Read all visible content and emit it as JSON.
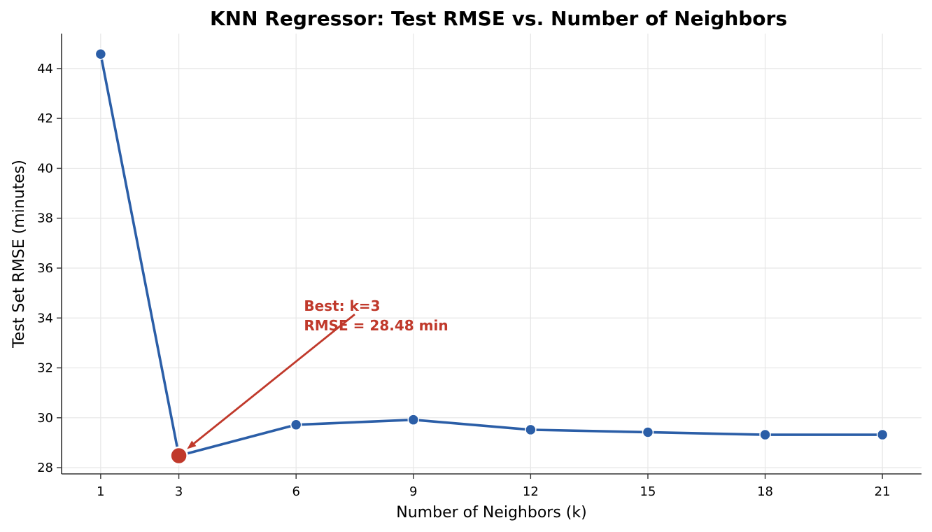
{
  "chart_data": {
    "type": "line",
    "title": "KNN Regressor: Test RMSE vs. Number of Neighbors",
    "xlabel": "Number of Neighbors (k)",
    "ylabel": "Test Set RMSE (minutes)",
    "x": [
      1,
      3,
      6,
      9,
      12,
      15,
      18,
      21
    ],
    "x_tick_labels": [
      "1",
      "3",
      "6",
      "9",
      "12",
      "15",
      "18",
      "21"
    ],
    "series": [
      {
        "values": [
          44.58,
          28.48,
          29.72,
          29.92,
          29.52,
          29.42,
          29.32,
          29.32
        ],
        "color": "#2b5ea7"
      }
    ],
    "xlim": [
      0.0,
      22.0
    ],
    "ylim": [
      27.75,
      45.4
    ],
    "y_ticks": [
      28,
      30,
      32,
      34,
      36,
      38,
      40,
      42,
      44
    ],
    "y_tick_labels": [
      "28",
      "30",
      "32",
      "34",
      "36",
      "38",
      "40",
      "42",
      "44"
    ],
    "grid": true,
    "highlight": {
      "x": 3,
      "y": 28.48,
      "color": "#c0392b"
    },
    "annotation": {
      "lines": [
        "Best: k=3",
        "RMSE = 28.48 min"
      ],
      "color": "#c0392b",
      "text_anchor_data": {
        "x": 7.5,
        "y": 34.2
      }
    }
  }
}
